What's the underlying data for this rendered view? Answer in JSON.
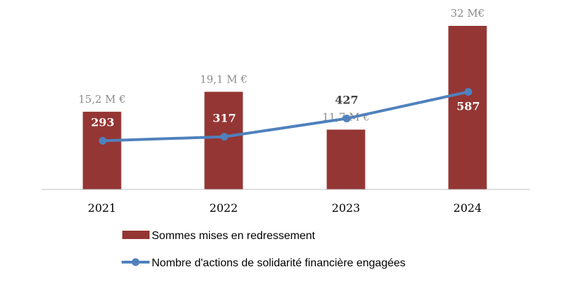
{
  "chart_data": {
    "type": "bar",
    "categories": [
      "2021",
      "2022",
      "2023",
      "2024"
    ],
    "series": [
      {
        "name": "Sommes mises en redressement",
        "kind": "bar",
        "values": [
          15.2,
          19.1,
          11.7,
          32
        ],
        "data_labels": [
          "15,2 M €",
          "19,1 M €",
          "11,7 M €",
          "32 M€"
        ],
        "color": "#943634"
      },
      {
        "name": "Nombre d'actions de solidarité financière engagées",
        "kind": "line",
        "values": [
          293,
          317,
          427,
          587
        ],
        "data_labels": [
          "293",
          "317",
          "427",
          "587"
        ],
        "color": "#4f81bd"
      }
    ],
    "bar_ylim": [
      0,
      32
    ],
    "line_ylim": [
      0,
      1140
    ],
    "title": "",
    "xlabel": "",
    "ylabel": "",
    "legend_position": "bottom",
    "grid": false,
    "colors": {
      "axis": "#bfbfbf",
      "bar_label": "#8c8c8c"
    }
  }
}
